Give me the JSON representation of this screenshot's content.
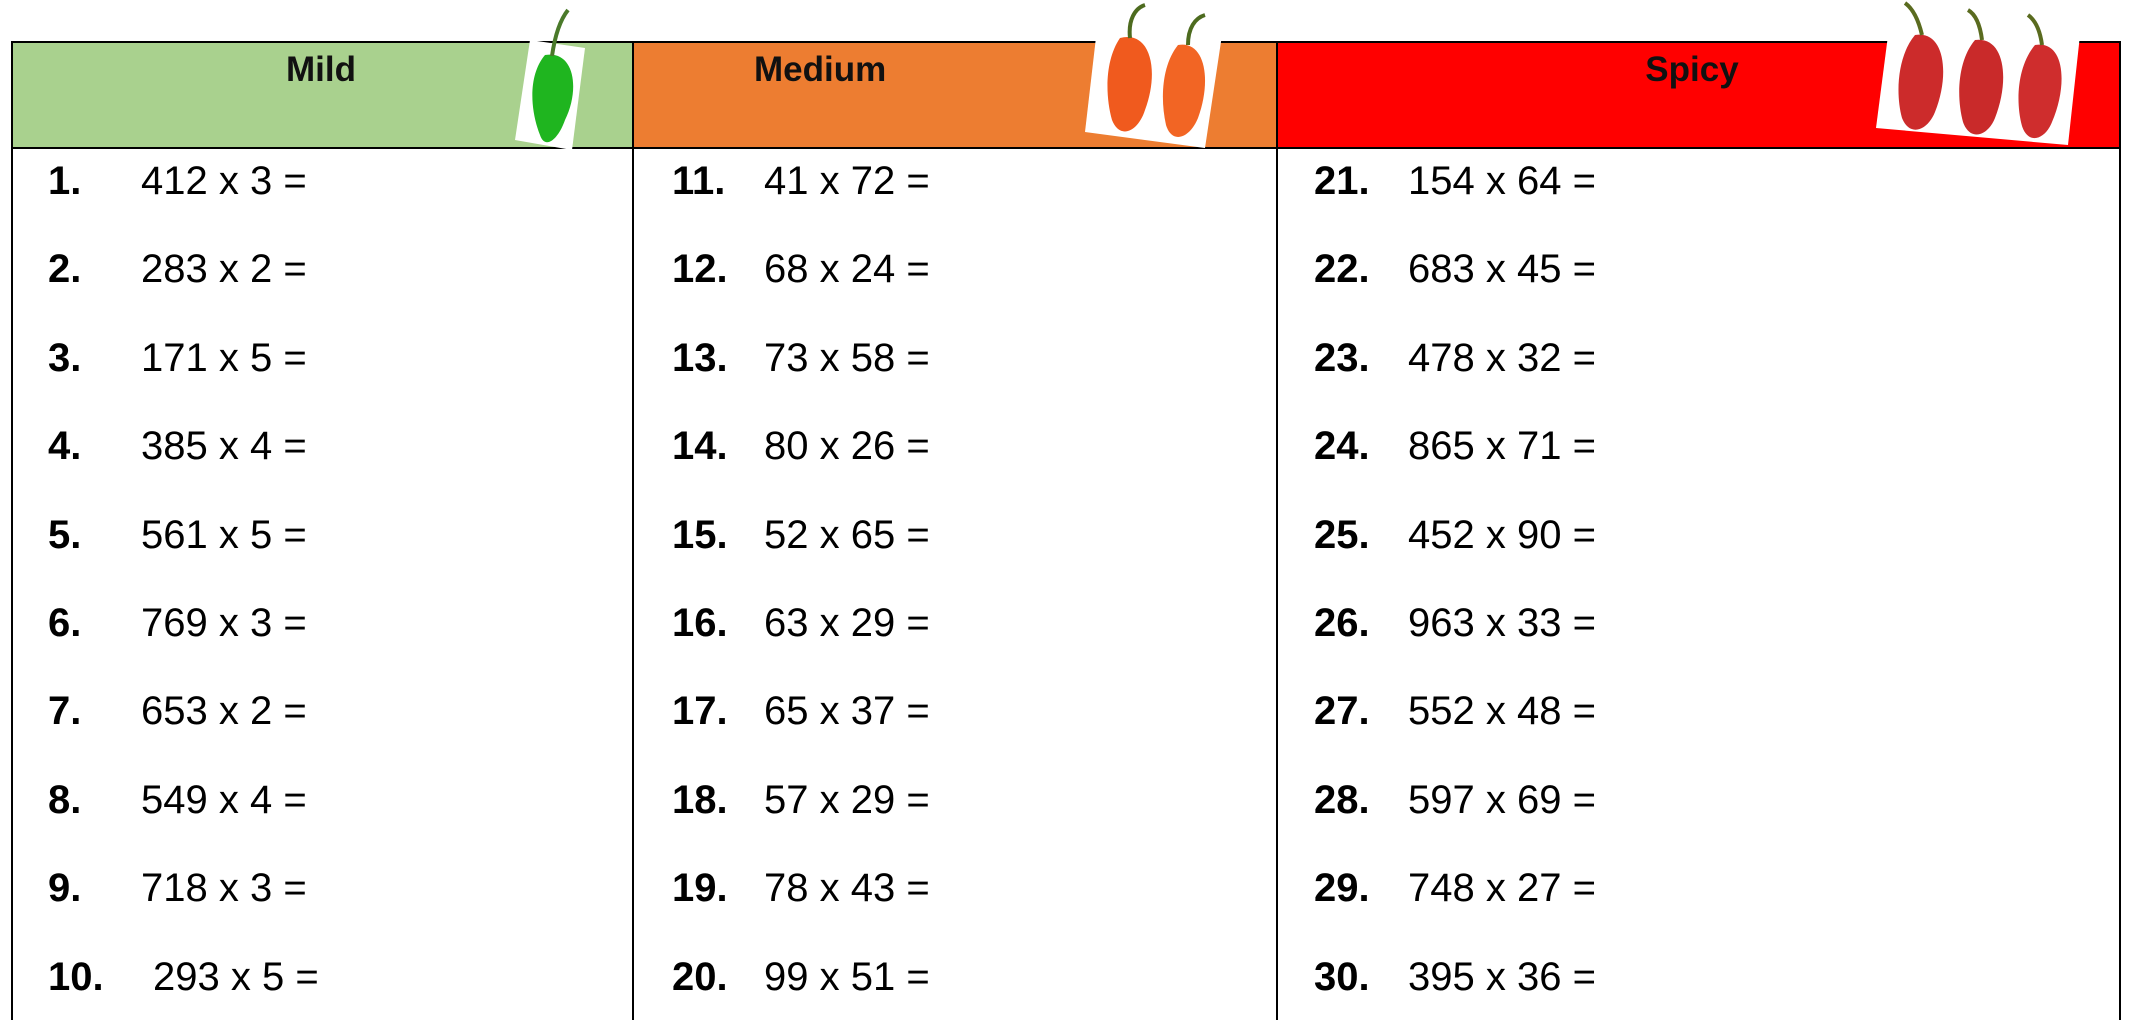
{
  "columns": [
    {
      "title": "Mild",
      "problems": [
        {
          "number": "1.",
          "expression": "412 x 3 ="
        },
        {
          "number": "2.",
          "expression": "283 x 2 ="
        },
        {
          "number": "3.",
          "expression": "171 x 5 ="
        },
        {
          "number": "4.",
          "expression": "385 x 4 ="
        },
        {
          "number": "5.",
          "expression": "561 x 5 ="
        },
        {
          "number": "6.",
          "expression": "769 x 3 ="
        },
        {
          "number": "7.",
          "expression": "653 x 2 ="
        },
        {
          "number": "8.",
          "expression": "549 x 4 ="
        },
        {
          "number": "9.",
          "expression": "718 x 3 ="
        },
        {
          "number": "10.",
          "expression": "293 x 5 ="
        }
      ]
    },
    {
      "title": "Medium",
      "problems": [
        {
          "number": "11.",
          "expression": "41 x 72 ="
        },
        {
          "number": "12.",
          "expression": "68 x 24 ="
        },
        {
          "number": "13.",
          "expression": "73 x 58 ="
        },
        {
          "number": "14.",
          "expression": "80 x 26 ="
        },
        {
          "number": "15.",
          "expression": "52 x 65 ="
        },
        {
          "number": "16.",
          "expression": "63 x 29 ="
        },
        {
          "number": "17.",
          "expression": "65 x 37 ="
        },
        {
          "number": "18.",
          "expression": "57 x 29 ="
        },
        {
          "number": "19.",
          "expression": "78 x 43 ="
        },
        {
          "number": "20.",
          "expression": "99 x 51 ="
        }
      ]
    },
    {
      "title": "Spicy",
      "problems": [
        {
          "number": "21.",
          "expression": "154 x 64 ="
        },
        {
          "number": "22.",
          "expression": "683 x 45 ="
        },
        {
          "number": "23.",
          "expression": "478 x 32 ="
        },
        {
          "number": "24.",
          "expression": "865 x 71 ="
        },
        {
          "number": "25.",
          "expression": "452 x 90 ="
        },
        {
          "number": "26.",
          "expression": "963 x 33 ="
        },
        {
          "number": "27.",
          "expression": "552 x 48 ="
        },
        {
          "number": "28.",
          "expression": "597 x 69 ="
        },
        {
          "number": "29.",
          "expression": "748 x 27 ="
        },
        {
          "number": "30.",
          "expression": "395 x 36 ="
        }
      ]
    }
  ]
}
